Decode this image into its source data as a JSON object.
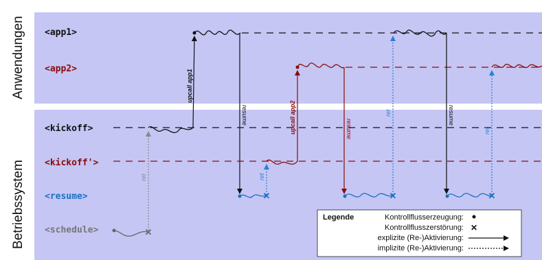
{
  "side_labels": {
    "top": "Anwendungen",
    "bottom": "Betriebssystem"
  },
  "lanes": {
    "app1": "<app1>",
    "app2": "<app2>",
    "kickoff": "<kickoff>",
    "kickoff2": "<kickoff'>",
    "resume": "<resume>",
    "schedule": "<schedule>"
  },
  "arrow_labels": {
    "upcall_app1": "upcall app1",
    "upcall_app2": "upcall app2",
    "resume": "resume",
    "ret": "ret"
  },
  "legend": {
    "title": "Legende",
    "create": "Kontrollflusserzeugung:",
    "destroy": "Kontrollflusszerstörung:",
    "explicit": "explizite (Re-)Aktivierung:",
    "implicit": "implizite (Re-)Aktivierung:"
  },
  "colors": {
    "panel": "#c5c6f4",
    "app1": "#111111",
    "app2": "#8b0a0a",
    "kickoff2": "#8b0a0a",
    "resume": "#1a6fc4",
    "schedule": "#777777",
    "ret_blue": "#2a7fd4",
    "ret_grey": "#888888"
  }
}
